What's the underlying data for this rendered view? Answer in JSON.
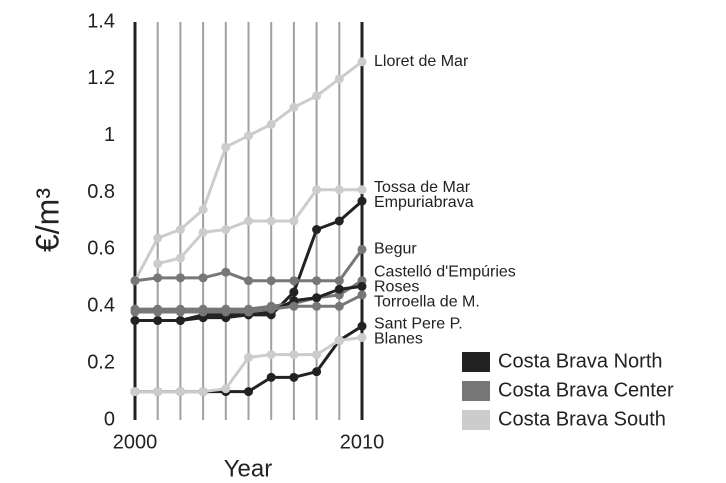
{
  "chart_data": {
    "type": "line",
    "xlabel": "Year",
    "ylabel": "€/m³",
    "x": [
      2000,
      2001,
      2002,
      2003,
      2004,
      2005,
      2006,
      2007,
      2008,
      2009,
      2010
    ],
    "xlim": [
      2000,
      2010
    ],
    "xticks": [
      2000,
      2010
    ],
    "xminorticks": [
      2001,
      2002,
      2003,
      2004,
      2005,
      2006,
      2007,
      2008,
      2009
    ],
    "ylim": [
      0,
      1.4
    ],
    "yticks": [
      0,
      0.2,
      0.4,
      0.6,
      0.8,
      1,
      1.2,
      1.4
    ],
    "grid": "x",
    "legend_position": "lower right",
    "legend": [
      {
        "name": "Costa Brava North",
        "color": "#222222"
      },
      {
        "name": "Costa Brava Center",
        "color": "#777777"
      },
      {
        "name": "Costa Brava South",
        "color": "#cccccc"
      }
    ],
    "series": [
      {
        "name": "Lloret de Mar",
        "color": "#cccccc",
        "values": [
          0.49,
          0.64,
          0.67,
          0.74,
          0.96,
          1.0,
          1.04,
          1.1,
          1.14,
          1.2,
          1.26
        ]
      },
      {
        "name": "Tossa de Mar",
        "color": "#cccccc",
        "values": [
          null,
          0.55,
          0.57,
          0.66,
          0.67,
          0.7,
          0.7,
          0.7,
          0.81,
          0.81,
          0.81
        ]
      },
      {
        "name": "Empuriabrava",
        "color": "#222222",
        "values": [
          0.35,
          0.35,
          0.35,
          0.36,
          0.36,
          0.37,
          0.37,
          0.45,
          0.67,
          0.7,
          0.77
        ]
      },
      {
        "name": "Begur",
        "color": "#777777",
        "values": [
          0.49,
          0.5,
          0.5,
          0.5,
          0.52,
          0.49,
          0.49,
          0.49,
          0.49,
          0.49,
          0.6
        ]
      },
      {
        "name": "Castelló d'Empúries",
        "color": "#777777",
        "values": [
          0.39,
          0.39,
          0.39,
          0.39,
          0.39,
          0.39,
          0.4,
          0.41,
          0.43,
          0.44,
          0.49
        ]
      },
      {
        "name": "Roses",
        "color": "#222222",
        "values": [
          0.35,
          0.35,
          0.35,
          0.37,
          0.37,
          0.37,
          0.38,
          0.42,
          0.43,
          0.46,
          0.47
        ]
      },
      {
        "name": "Torroella de M.",
        "color": "#777777",
        "values": [
          0.38,
          0.38,
          0.38,
          0.38,
          0.38,
          0.38,
          0.39,
          0.4,
          0.4,
          0.4,
          0.44
        ]
      },
      {
        "name": "Sant Pere P.",
        "color": "#222222",
        "values": [
          0.1,
          0.1,
          0.1,
          0.1,
          0.1,
          0.1,
          0.15,
          0.15,
          0.17,
          0.28,
          0.33
        ]
      },
      {
        "name": "Blanes",
        "color": "#cccccc",
        "values": [
          0.1,
          0.1,
          0.1,
          0.1,
          0.11,
          0.22,
          0.23,
          0.23,
          0.23,
          0.28,
          0.29
        ]
      }
    ]
  }
}
